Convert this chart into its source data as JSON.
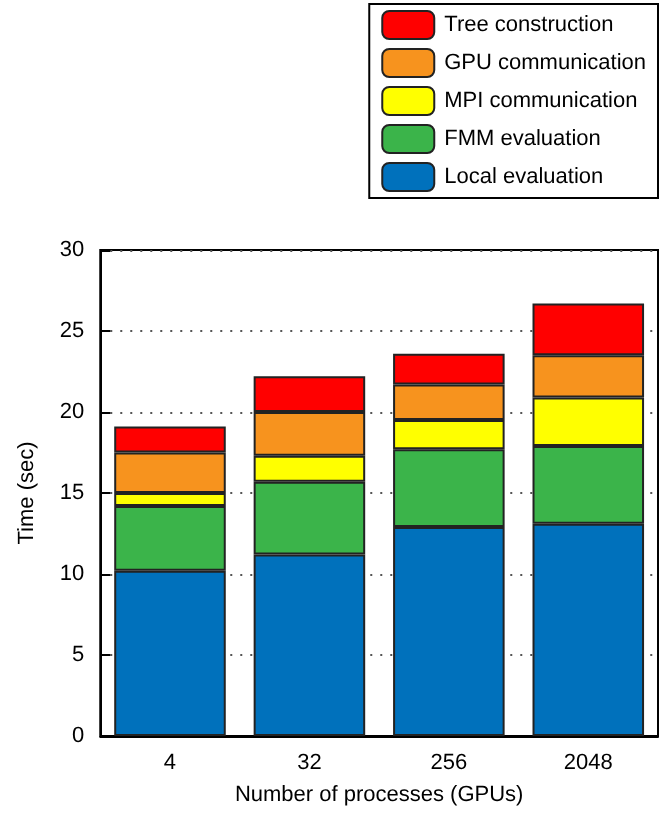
{
  "chart_data": {
    "type": "bar",
    "stacked": true,
    "xlabel": "Number of processes (GPUs)",
    "ylabel": "Time (sec)",
    "categories": [
      "4",
      "32",
      "256",
      "2048"
    ],
    "series": [
      {
        "name": "Local evaluation",
        "color": "#0071bc",
        "values": [
          10.2,
          11.2,
          12.9,
          13.1
        ]
      },
      {
        "name": "FMM evaluation",
        "color": "#3bb44a",
        "values": [
          4.0,
          4.5,
          4.8,
          4.8
        ]
      },
      {
        "name": "MPI communication",
        "color": "#ffff00",
        "values": [
          0.8,
          1.6,
          1.8,
          3.0
        ]
      },
      {
        "name": "GPU communication",
        "color": "#f7931e",
        "values": [
          2.5,
          2.7,
          2.2,
          2.6
        ]
      },
      {
        "name": "Tree construction",
        "color": "#ff0000",
        "values": [
          1.6,
          2.2,
          1.9,
          3.2
        ]
      }
    ],
    "ylim": [
      0,
      30
    ],
    "yticks": [
      0,
      5,
      10,
      15,
      20,
      25,
      30
    ],
    "grid": "y",
    "legend": "top right"
  }
}
